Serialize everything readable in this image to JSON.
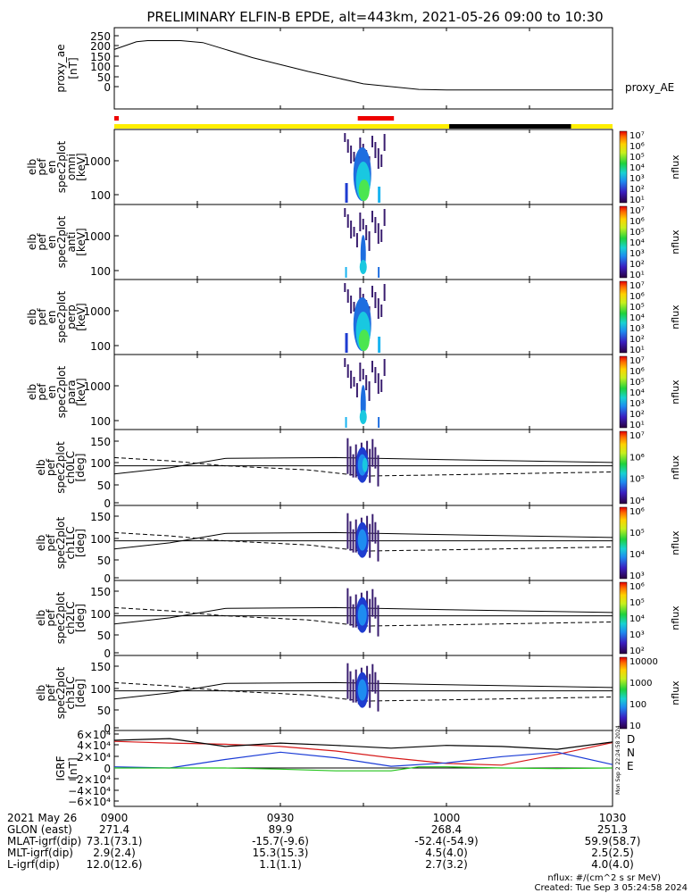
{
  "title": "PRELIMINARY ELFIN-B EPDE, alt=443km, 2021-05-26 09:00 to 10:30",
  "colors": {
    "frame": "#000000",
    "state_yellow": "#ffee00",
    "state_red": "#ee0000",
    "state_black": "#000000",
    "trace_black": "#000000",
    "trace_blue": "#1a3bd6",
    "trace_red": "#d61a1a",
    "trace_green": "#22c41a"
  },
  "state_bar": {
    "segments": [
      {
        "state": "yellow",
        "start_min": 0,
        "end_min": 90
      },
      {
        "state": "black",
        "start_min": 60.5,
        "end_min": 82.5
      },
      {
        "state": "red",
        "start_min": 0,
        "end_min": 0.6
      },
      {
        "state": "red",
        "start_min": 44,
        "end_min": 50.5
      }
    ]
  },
  "x_axis": {
    "labels": [
      [
        "2021 May 26",
        "0900",
        "0930",
        "1000",
        "1030"
      ],
      [
        "GLON (east)",
        "271.4",
        "89.9",
        "268.4",
        "251.3"
      ],
      [
        "MLAT-igrf(dip)",
        "73.1(73.1)",
        "-15.7(-9.6)",
        "-52.4(-54.9)",
        "59.9(58.7)"
      ],
      [
        "MLT-igrf(dip)",
        "2.9(2.4)",
        "15.3(15.3)",
        "4.5(4.0)",
        "2.5(2.5)"
      ],
      [
        "L-igrf(dip)",
        "12.0(12.6)",
        "1.1(1.1)",
        "2.7(3.2)",
        "4.0(4.0)"
      ]
    ]
  },
  "footer": {
    "units": "nflux: #/(cm^2 s sr MeV)",
    "created": "Created: Tue Sep  3 05:24:58 2024",
    "stamp": "Mon Sep  2 22:24:58 2024"
  },
  "panels": [
    {
      "id": "proxy",
      "ylabel": [
        "proxy_ae",
        "[nT]"
      ],
      "right_label": "proxy_AE",
      "yticks": [
        "250",
        "200",
        "150",
        "100",
        "50",
        "0"
      ]
    },
    {
      "id": "omni",
      "ylabel": [
        "elb",
        "pef",
        "en",
        "spec2plot",
        "omni",
        "[keV]"
      ],
      "yticks": [
        "1000",
        "100"
      ],
      "colorbar": {
        "label": "nflux",
        "ticks": [
          "10⁷",
          "10⁶",
          "10⁵",
          "10⁴",
          "10³",
          "10²",
          "10¹"
        ]
      }
    },
    {
      "id": "anti",
      "ylabel": [
        "elb",
        "pef",
        "en",
        "spec2plot",
        "anti",
        "[keV]"
      ],
      "yticks": [
        "1000",
        "100"
      ],
      "colorbar": {
        "label": "nflux",
        "ticks": [
          "10⁷",
          "10⁶",
          "10⁵",
          "10⁴",
          "10³",
          "10²",
          "10¹"
        ]
      }
    },
    {
      "id": "perp",
      "ylabel": [
        "elb",
        "pef",
        "en",
        "spec2plot",
        "perp",
        "[keV]"
      ],
      "yticks": [
        "1000",
        "100"
      ],
      "colorbar": {
        "label": "nflux",
        "ticks": [
          "10⁷",
          "10⁶",
          "10⁵",
          "10⁴",
          "10³",
          "10²",
          "10¹"
        ]
      }
    },
    {
      "id": "para",
      "ylabel": [
        "elb",
        "pef",
        "en",
        "spec2plot",
        "para",
        "[keV]"
      ],
      "yticks": [
        "1000",
        "100"
      ],
      "colorbar": {
        "label": "nflux",
        "ticks": [
          "10⁷",
          "10⁶",
          "10⁵",
          "10⁴",
          "10³",
          "10²",
          "10¹"
        ]
      }
    },
    {
      "id": "ch0",
      "ylabel": [
        "elb",
        "pef",
        "spec2plot",
        "ch0LC",
        "[deg]"
      ],
      "yticks": [
        "150",
        "100",
        "50",
        "0"
      ],
      "colorbar": {
        "label": "nflux",
        "ticks": [
          "10⁷",
          "10⁶",
          "10⁵",
          "10⁴"
        ]
      }
    },
    {
      "id": "ch1",
      "ylabel": [
        "elb",
        "pef",
        "spec2plot",
        "ch1LC",
        "[deg]"
      ],
      "yticks": [
        "150",
        "100",
        "50",
        "0"
      ],
      "colorbar": {
        "label": "nflux",
        "ticks": [
          "10⁶",
          "10⁵",
          "10⁴",
          "10³"
        ]
      }
    },
    {
      "id": "ch2",
      "ylabel": [
        "elb",
        "pef",
        "spec2plot",
        "ch2LC",
        "[deg]"
      ],
      "yticks": [
        "150",
        "100",
        "50",
        "0"
      ],
      "colorbar": {
        "label": "nflux",
        "ticks": [
          "10⁶",
          "10⁵",
          "10⁴",
          "10³",
          "10²"
        ]
      }
    },
    {
      "id": "ch3",
      "ylabel": [
        "elb",
        "pef",
        "spec2plot",
        "ch3LC",
        "[deg]"
      ],
      "yticks": [
        "150",
        "100",
        "50",
        "0"
      ],
      "colorbar": {
        "label": "nflux",
        "ticks": [
          "10000",
          "1000",
          "100",
          "10"
        ]
      }
    },
    {
      "id": "igrf",
      "ylabel": [
        "IGRF",
        "[nT]"
      ],
      "yticks": [
        "6×10⁴",
        "4×10⁴",
        "2×10⁴",
        "0",
        "−2×10⁴",
        "−4×10⁴",
        "−6×10⁴"
      ],
      "legend": [
        "D",
        "N",
        "E"
      ]
    }
  ],
  "chart_data": {
    "type": "line",
    "x_unit": "minutes after 2021-05-26 09:00",
    "xlim": [
      0,
      90
    ],
    "series": [
      {
        "name": "proxy_AE",
        "unit": "nT",
        "ylim": [
          0,
          260
        ],
        "x": [
          0,
          4,
          6,
          12,
          16,
          25,
          35,
          45,
          55,
          60,
          70,
          80,
          90
        ],
        "y": [
          200,
          228,
          232,
          232,
          225,
          170,
          120,
          75,
          55,
          53,
          53,
          53,
          53
        ]
      },
      {
        "name": "D",
        "unit": "nT",
        "ylim": [
          -60000,
          60000
        ],
        "x": [
          0,
          10,
          20,
          30,
          40,
          50,
          60,
          70,
          80,
          90
        ],
        "y": [
          47000,
          44000,
          42000,
          38000,
          30000,
          18000,
          8000,
          5000,
          24000,
          45000
        ]
      },
      {
        "name": "N",
        "unit": "nT",
        "ylim": [
          -60000,
          60000
        ],
        "x": [
          0,
          10,
          20,
          30,
          40,
          50,
          60,
          70,
          80,
          90
        ],
        "y": [
          2000,
          0,
          15000,
          28000,
          18000,
          3000,
          9000,
          20000,
          28000,
          6000
        ]
      },
      {
        "name": "E",
        "unit": "nT",
        "ylim": [
          -60000,
          60000
        ],
        "x": [
          0,
          10,
          20,
          30,
          40,
          50,
          55,
          60,
          70,
          80,
          90
        ],
        "y": [
          0,
          0,
          0,
          -2000,
          -5000,
          -5000,
          2000,
          2000,
          0,
          -1000,
          0
        ]
      },
      {
        "name": "F",
        "unit": "nT",
        "ylim": [
          -60000,
          60000
        ],
        "x": [
          0,
          10,
          20,
          30,
          40,
          50,
          60,
          70,
          80,
          90
        ],
        "y": [
          49000,
          52000,
          38000,
          44000,
          40000,
          35000,
          40000,
          38000,
          33000,
          46000
        ]
      }
    ]
  }
}
